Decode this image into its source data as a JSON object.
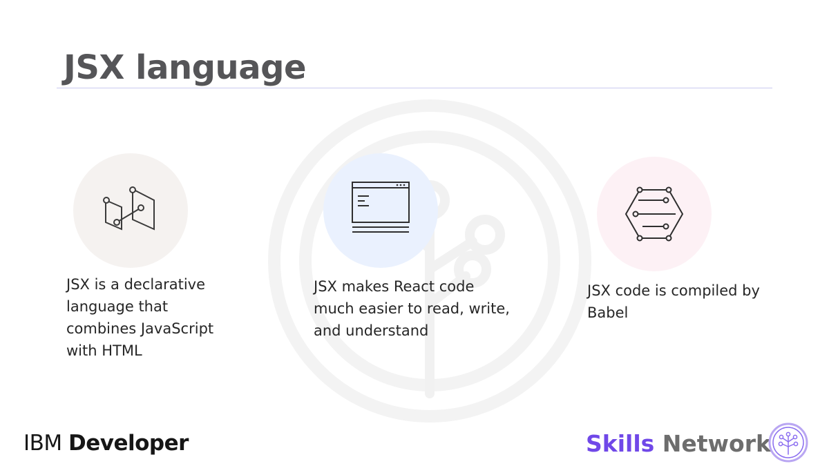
{
  "slide": {
    "title": "JSX language"
  },
  "features": [
    {
      "icon": "node-graph-icon",
      "text": "JSX is a declarative language that combines JavaScript with HTML"
    },
    {
      "icon": "code-window-icon",
      "text": "JSX makes React code much easier to read, write, and understand"
    },
    {
      "icon": "compile-circuit-icon",
      "text": "JSX code is compiled by Babel"
    }
  ],
  "footer": {
    "brand_left_regular": "IBM ",
    "brand_left_bold": "Developer",
    "brand_right_part1": "Skills",
    "brand_right_part2": " Network",
    "brand_logo_icon": "tree-network-icon"
  },
  "colors": {
    "title": "#555558",
    "rule": "#c9c9f0",
    "skills_accent": "#7048e8",
    "network_gray": "#6d6d6d",
    "circle1": "#f5f2f0",
    "circle2": "#eaf1fe",
    "circle3": "#fdf1f5"
  }
}
